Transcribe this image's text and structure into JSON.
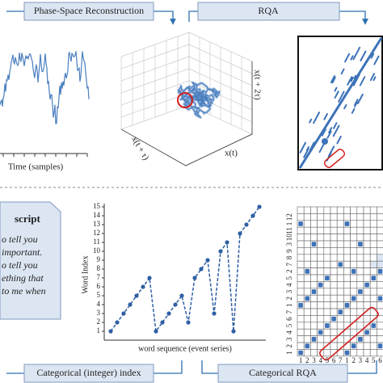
{
  "headers": {
    "phase_space": "Phase-Space Reconstruction",
    "rqa": "RQA",
    "categorical_index": "Categorical (integer) index",
    "categorical_rqa": "Categorical RQA"
  },
  "time_series": {
    "xlabel": "Time (samples)"
  },
  "phase_space": {
    "axis_x": "x(t)",
    "axis_y": "x(t + τ)",
    "axis_z": "x(t + 2τ)"
  },
  "script": {
    "title": "script",
    "lines": [
      "o tell you",
      "important.",
      "o tell you",
      "ething that",
      "to me when"
    ]
  },
  "chart_data": {
    "type": "line",
    "ylabel": "Word Index",
    "xlabel": "word sequence (event series)",
    "x": [
      1,
      2,
      3,
      4,
      5,
      6,
      7,
      8,
      9,
      10,
      11,
      12,
      13,
      14,
      15,
      16,
      17,
      18,
      19,
      20,
      21,
      22,
      23,
      24
    ],
    "values": [
      1,
      2,
      3,
      4,
      5,
      6,
      7,
      1,
      2,
      3,
      4,
      5,
      2,
      7,
      8,
      9,
      3,
      10,
      11,
      1,
      12,
      13,
      14,
      15
    ],
    "color": "#2e5fa3",
    "xlim": [
      0,
      25
    ],
    "ylim": [
      0,
      15
    ],
    "yticks": [
      1,
      2,
      3,
      4,
      5,
      6,
      7,
      8,
      9,
      10,
      11,
      12,
      13,
      14,
      15
    ]
  },
  "categorical_rqa": {
    "x_labels": [
      "1",
      "2",
      "3",
      "4",
      "5",
      "6",
      "7",
      "1",
      "2",
      "3",
      "4",
      "5",
      "6"
    ],
    "y_labels": [
      "1",
      "2",
      "3",
      "4",
      "5",
      "6",
      "7",
      "1",
      "2",
      "3",
      "4",
      "5",
      "2",
      "7",
      "8",
      "9",
      "3",
      "10",
      "11",
      "1",
      "12"
    ]
  }
}
